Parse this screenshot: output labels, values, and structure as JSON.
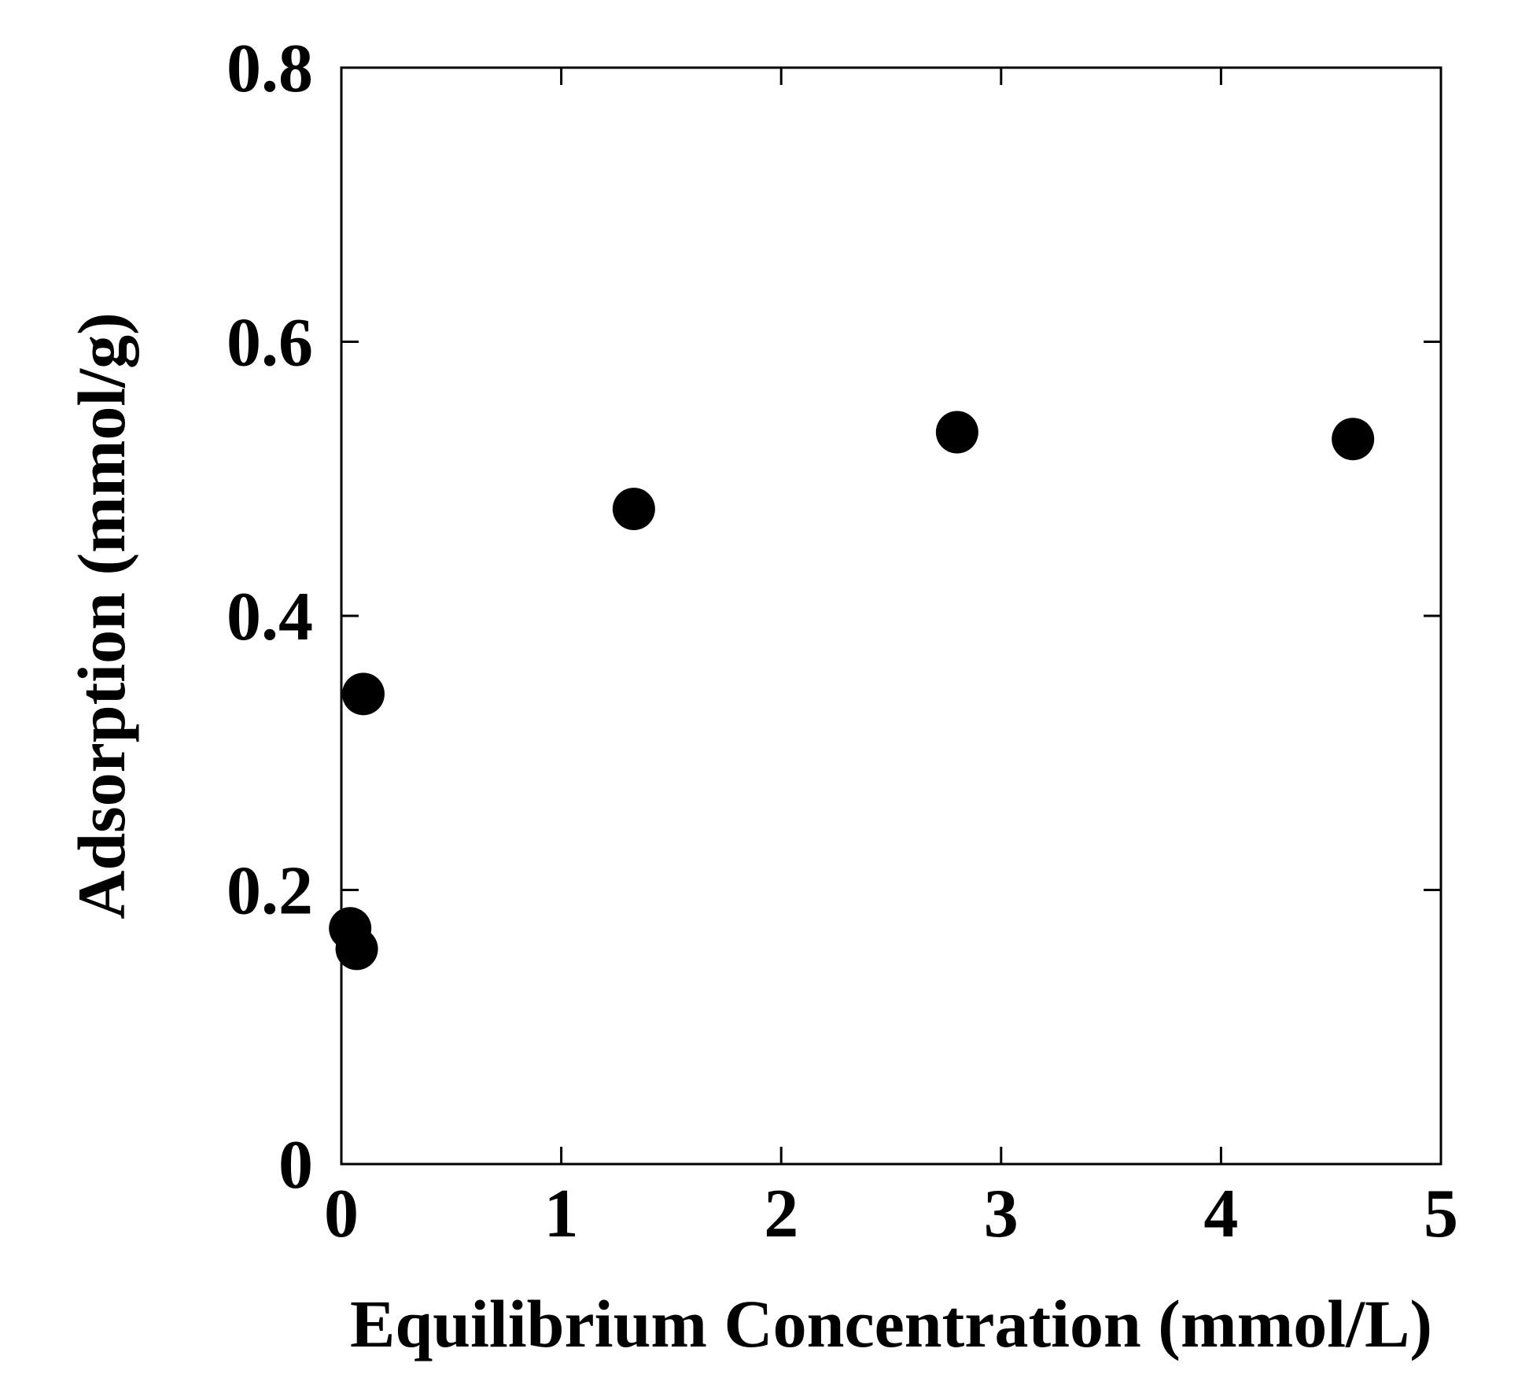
{
  "chart_data": {
    "type": "scatter",
    "title": "",
    "xlabel": "Equilibrium Concentration (mmol/L)",
    "ylabel": "Adsorption (mmol/g)",
    "xlim": [
      0,
      5
    ],
    "ylim": [
      0,
      0.8
    ],
    "x_ticks": [
      0,
      1,
      2,
      3,
      4,
      5
    ],
    "x_tick_labels": [
      "0",
      "1",
      "2",
      "3",
      "4",
      "5"
    ],
    "y_ticks": [
      0,
      0.2,
      0.4,
      0.6,
      0.8
    ],
    "y_tick_labels": [
      "0",
      "0.2",
      "0.4",
      "0.6",
      "0.8"
    ],
    "grid": false,
    "legend": false,
    "marker_color": "#000000",
    "series": [
      {
        "points": [
          {
            "x": 0.04,
            "y": 0.172
          },
          {
            "x": 0.07,
            "y": 0.157
          },
          {
            "x": 0.1,
            "y": 0.343
          },
          {
            "x": 1.33,
            "y": 0.478
          },
          {
            "x": 2.8,
            "y": 0.534
          },
          {
            "x": 4.6,
            "y": 0.529
          }
        ]
      }
    ]
  }
}
